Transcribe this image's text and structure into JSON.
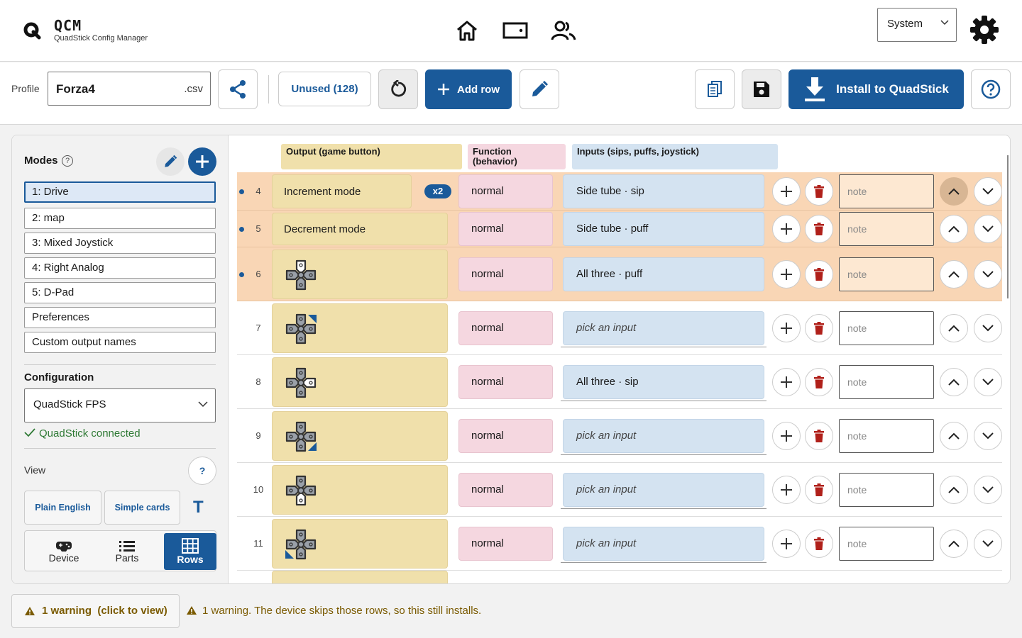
{
  "app": {
    "name": "QCM",
    "subtitle": "QuadStick Config Manager"
  },
  "header": {
    "nav_icons": [
      "home-icon",
      "device-icon",
      "users-icon"
    ],
    "theme_select": "System",
    "settings_icon": "gear-icon"
  },
  "toolbar": {
    "profile_label": "Profile",
    "profile_name": "Forza4",
    "profile_ext": ".csv",
    "unused_label": "Unused (128)",
    "add_row_label": "Add row",
    "install_label": "Install to QuadStick"
  },
  "modes": {
    "heading": "Modes",
    "help": "?",
    "items": [
      "1: Drive",
      "2: map",
      "3: Mixed Joystick",
      "4: Right Analog",
      "5: D-Pad",
      "Preferences",
      "Custom output names"
    ],
    "selected_index": 0
  },
  "configuration": {
    "heading": "Configuration",
    "selected": "QuadStick FPS",
    "status": "QuadStick connected"
  },
  "view": {
    "label": "View",
    "help": "?",
    "buttons": [
      "Plain English",
      "Simple cards"
    ],
    "text_toggle": "T",
    "segments": [
      {
        "label": "Device",
        "icon": "gamepad-icon"
      },
      {
        "label": "Parts",
        "icon": "list-icon"
      },
      {
        "label": "Rows",
        "icon": "grid-icon"
      }
    ],
    "active_segment": "Rows"
  },
  "columns": [
    "Output (game button)",
    "Function\n(behavior)",
    "Inputs (sips, puffs, joystick)"
  ],
  "rows": [
    {
      "num": "4",
      "output": "Increment mode",
      "multiplier": "x2",
      "function": "normal",
      "input": "Side tube · sip",
      "note": "note",
      "highlighted": true
    },
    {
      "num": "5",
      "output": "Decrement mode",
      "function": "normal",
      "input": "Side tube · puff",
      "note": "note",
      "highlighted": true
    },
    {
      "num": "6",
      "output_icon": "dpad-up-icon",
      "function": "normal",
      "input": "All three · puff",
      "note": "note",
      "highlighted": true
    },
    {
      "num": "7",
      "output_icon": "dpad-up-right-icon",
      "function": "normal",
      "input_placeholder": "pick an input",
      "note": "note"
    },
    {
      "num": "8",
      "output_icon": "dpad-right-icon",
      "function": "normal",
      "input": "All three · sip",
      "note": "note"
    },
    {
      "num": "9",
      "output_icon": "dpad-down-right-icon",
      "function": "normal",
      "input_placeholder": "pick an input",
      "note": "note"
    },
    {
      "num": "10",
      "output_icon": "dpad-down-icon",
      "function": "normal",
      "input_placeholder": "pick an input",
      "note": "note"
    },
    {
      "num": "11",
      "output_icon": "dpad-down-left-icon",
      "function": "normal",
      "input_placeholder": "pick an input",
      "note": "note"
    }
  ],
  "footer": {
    "warning_button": "1 warning  (click to view)",
    "warning_text": "1 warning. The device skips those rows, so this still installs."
  },
  "colors": {
    "accent": "#1a5a9a",
    "output_bg": "#f0e0ab",
    "function_bg": "#f5d7e0",
    "input_bg": "#d4e3f1",
    "highlight_bg": "#f9d6b5",
    "warning": "#7a5a00",
    "success": "#2f7a35",
    "delete": "#b0201a"
  }
}
